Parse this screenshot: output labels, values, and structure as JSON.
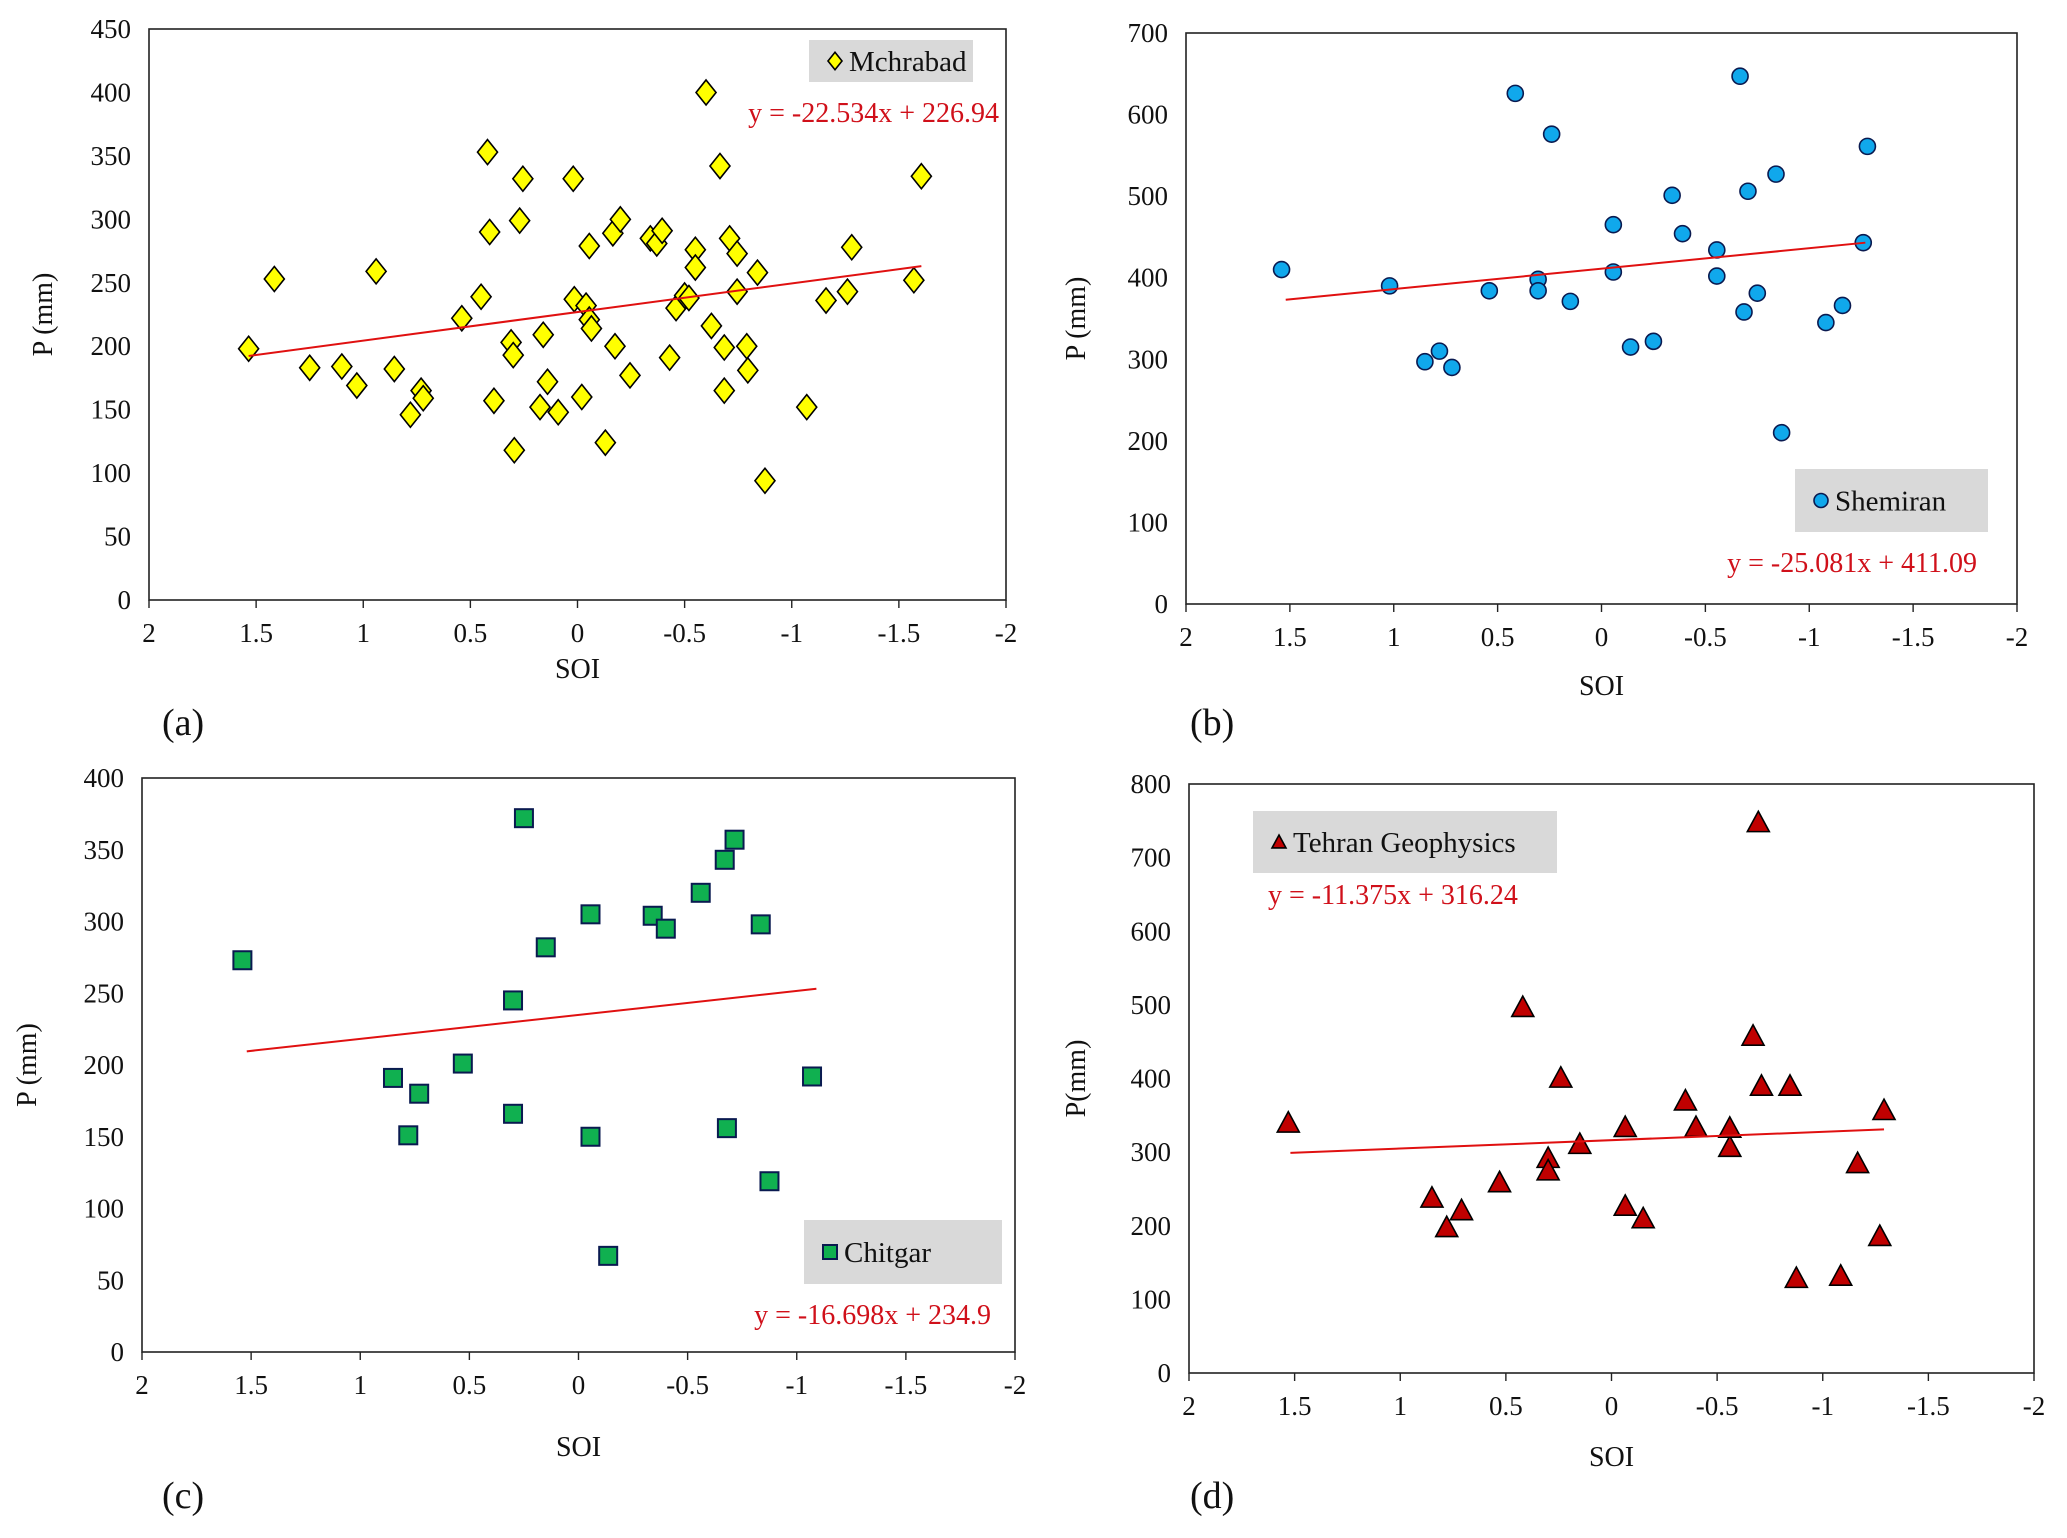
{
  "chart_data": [
    {
      "type": "scatter",
      "panel_label": "(a)",
      "legend": "Mchrabad",
      "legend_position": "top-right",
      "marker": "diamond",
      "marker_color": "#ffff00",
      "equation": "y = -22.534x + 226.94",
      "trend": {
        "slope": -22.534,
        "intercept": 226.94,
        "x_from": 1.535,
        "x_to": -1.605
      },
      "xlabel": "SOI",
      "ylabel": "P (mm)",
      "xlim": [
        2,
        -2
      ],
      "ylim": [
        0,
        450
      ],
      "xticks": [
        {
          "v": 2,
          "label": "2"
        },
        {
          "v": 1.5,
          "label": "1.5"
        },
        {
          "v": 1,
          "label": "1"
        },
        {
          "v": 0.5,
          "label": "0.5"
        },
        {
          "v": 0,
          "label": "0"
        },
        {
          "v": -0.5,
          "label": "-0.5"
        },
        {
          "v": -1,
          "label": "-1"
        },
        {
          "v": -1.5,
          "label": "-1.5"
        },
        {
          "v": -2,
          "label": "-2"
        }
      ],
      "yticks": [
        {
          "v": 0,
          "label": "0"
        },
        {
          "v": 50,
          "label": "50"
        },
        {
          "v": 100,
          "label": "100"
        },
        {
          "v": 150,
          "label": "150"
        },
        {
          "v": 200,
          "label": "200"
        },
        {
          "v": 250,
          "label": "250"
        },
        {
          "v": 300,
          "label": "300"
        },
        {
          "v": 350,
          "label": "350"
        },
        {
          "v": 400,
          "label": "400"
        },
        {
          "v": 450,
          "label": "450"
        }
      ],
      "points": [
        [
          1.535,
          198
        ],
        [
          1.415,
          253
        ],
        [
          1.25,
          183
        ],
        [
          1.1,
          184
        ],
        [
          1.03,
          169
        ],
        [
          0.94,
          259
        ],
        [
          0.855,
          182
        ],
        [
          0.78,
          146
        ],
        [
          0.73,
          165
        ],
        [
          0.72,
          159
        ],
        [
          0.54,
          222
        ],
        [
          0.45,
          239
        ],
        [
          0.42,
          353
        ],
        [
          0.41,
          290
        ],
        [
          0.39,
          157
        ],
        [
          0.31,
          203
        ],
        [
          0.3,
          193
        ],
        [
          0.295,
          118
        ],
        [
          0.27,
          299
        ],
        [
          0.255,
          332
        ],
        [
          0.16,
          209
        ],
        [
          0.14,
          172
        ],
        [
          0.175,
          152
        ],
        [
          0.09,
          148
        ],
        [
          0.02,
          332
        ],
        [
          0.015,
          237
        ],
        [
          -0.02,
          160
        ],
        [
          -0.04,
          232
        ],
        [
          -0.055,
          279
        ],
        [
          -0.055,
          221
        ],
        [
          -0.065,
          214
        ],
        [
          -0.13,
          124
        ],
        [
          -0.165,
          289
        ],
        [
          -0.175,
          200
        ],
        [
          -0.2,
          300
        ],
        [
          -0.245,
          177
        ],
        [
          -0.34,
          285
        ],
        [
          -0.37,
          281
        ],
        [
          -0.395,
          291
        ],
        [
          -0.43,
          191
        ],
        [
          -0.46,
          230
        ],
        [
          -0.5,
          240
        ],
        [
          -0.52,
          238
        ],
        [
          -0.55,
          276
        ],
        [
          -0.55,
          262
        ],
        [
          -0.6,
          400
        ],
        [
          -0.625,
          216
        ],
        [
          -0.665,
          342
        ],
        [
          -0.685,
          199
        ],
        [
          -0.685,
          165
        ],
        [
          -0.71,
          285
        ],
        [
          -0.745,
          273
        ],
        [
          -0.745,
          243
        ],
        [
          -0.79,
          200
        ],
        [
          -0.795,
          181
        ],
        [
          -0.84,
          258
        ],
        [
          -0.875,
          94
        ],
        [
          -1.07,
          152
        ],
        [
          -1.16,
          236
        ],
        [
          -1.26,
          243
        ],
        [
          -1.28,
          278
        ],
        [
          -1.57,
          252
        ],
        [
          -1.605,
          334
        ]
      ]
    },
    {
      "type": "scatter",
      "panel_label": "(b)",
      "legend": "Shemiran",
      "legend_position": "bottom-right",
      "marker": "circle",
      "marker_color": "#10a8ec",
      "equation": "y = -25.081x + 411.09",
      "trend": {
        "slope": -25.081,
        "intercept": 411.09,
        "x_from": 1.52,
        "x_to": -1.27
      },
      "xlabel": "SOI",
      "ylabel": "P (mm)",
      "xlim": [
        2,
        -2
      ],
      "ylim": [
        0,
        700
      ],
      "xticks": [
        {
          "v": 2,
          "label": "2"
        },
        {
          "v": 1.5,
          "label": "1.5"
        },
        {
          "v": 1,
          "label": "1"
        },
        {
          "v": 0.5,
          "label": "0.5"
        },
        {
          "v": 0,
          "label": "0"
        },
        {
          "v": -0.5,
          "label": "-0.5"
        },
        {
          "v": -1,
          "label": "-1"
        },
        {
          "v": -1.5,
          "label": "-1.5"
        },
        {
          "v": -2,
          "label": "-2"
        }
      ],
      "yticks": [
        {
          "v": 0,
          "label": "0"
        },
        {
          "v": 100,
          "label": "100"
        },
        {
          "v": 200,
          "label": "200"
        },
        {
          "v": 300,
          "label": "300"
        },
        {
          "v": 400,
          "label": "400"
        },
        {
          "v": 500,
          "label": "500"
        },
        {
          "v": 600,
          "label": "600"
        },
        {
          "v": 700,
          "label": "700"
        }
      ],
      "points": [
        [
          1.54,
          410
        ],
        [
          1.02,
          390
        ],
        [
          0.85,
          297
        ],
        [
          0.78,
          310
        ],
        [
          0.72,
          290
        ],
        [
          0.54,
          384
        ],
        [
          0.415,
          626
        ],
        [
          0.305,
          398
        ],
        [
          0.305,
          384
        ],
        [
          0.24,
          576
        ],
        [
          0.15,
          371
        ],
        [
          -0.057,
          465
        ],
        [
          -0.057,
          407
        ],
        [
          -0.14,
          315
        ],
        [
          -0.25,
          322
        ],
        [
          -0.34,
          501
        ],
        [
          -0.39,
          454
        ],
        [
          -0.555,
          434
        ],
        [
          -0.555,
          402
        ],
        [
          -0.667,
          647
        ],
        [
          -0.686,
          358
        ],
        [
          -0.705,
          506
        ],
        [
          -0.75,
          381
        ],
        [
          -0.84,
          527
        ],
        [
          -0.867,
          210
        ],
        [
          -1.08,
          345
        ],
        [
          -1.16,
          366
        ],
        [
          -1.26,
          443
        ],
        [
          -1.28,
          561
        ]
      ]
    },
    {
      "type": "scatter",
      "panel_label": "(c)",
      "legend": "Chitgar",
      "legend_position": "bottom-right",
      "marker": "square",
      "marker_color": "#10b050",
      "equation": "y = -16.698x + 234.9",
      "trend": {
        "slope": -16.698,
        "intercept": 234.9,
        "x_from": 1.52,
        "x_to": -1.09
      },
      "xlabel": "SOI",
      "ylabel": "P (mm)",
      "xlim": [
        2,
        -2
      ],
      "ylim": [
        0,
        400
      ],
      "xticks": [
        {
          "v": 2,
          "label": "2"
        },
        {
          "v": 1.5,
          "label": "1.5"
        },
        {
          "v": 1,
          "label": "1"
        },
        {
          "v": 0.5,
          "label": "0.5"
        },
        {
          "v": 0,
          "label": "0"
        },
        {
          "v": -0.5,
          "label": "-0.5"
        },
        {
          "v": -1,
          "label": "-1"
        },
        {
          "v": -1.5,
          "label": "-1.5"
        },
        {
          "v": -2,
          "label": "-2"
        }
      ],
      "yticks": [
        {
          "v": 0,
          "label": "0"
        },
        {
          "v": 50,
          "label": "50"
        },
        {
          "v": 100,
          "label": "100"
        },
        {
          "v": 150,
          "label": "150"
        },
        {
          "v": 200,
          "label": "200"
        },
        {
          "v": 250,
          "label": "250"
        },
        {
          "v": 300,
          "label": "300"
        },
        {
          "v": 350,
          "label": "350"
        },
        {
          "v": 400,
          "label": "400"
        }
      ],
      "points": [
        [
          1.54,
          273
        ],
        [
          0.85,
          191
        ],
        [
          0.78,
          151
        ],
        [
          0.73,
          180
        ],
        [
          0.53,
          201
        ],
        [
          0.3,
          166
        ],
        [
          0.3,
          245
        ],
        [
          0.25,
          372
        ],
        [
          0.15,
          282
        ],
        [
          -0.055,
          305
        ],
        [
          -0.055,
          150
        ],
        [
          -0.136,
          67
        ],
        [
          -0.34,
          304
        ],
        [
          -0.4,
          295
        ],
        [
          -0.56,
          320
        ],
        [
          -0.67,
          343
        ],
        [
          -0.68,
          156
        ],
        [
          -0.715,
          357
        ],
        [
          -0.835,
          298
        ],
        [
          -0.875,
          119
        ],
        [
          -1.07,
          192
        ]
      ]
    },
    {
      "type": "scatter",
      "panel_label": "(d)",
      "legend": "Tehran Geophysics",
      "legend_position": "top-left",
      "marker": "triangle",
      "marker_color": "#c00000",
      "equation": "y = -11.375x + 316.24",
      "trend": {
        "slope": -11.375,
        "intercept": 316.24,
        "x_from": 1.52,
        "x_to": -1.29
      },
      "xlabel": "SOI",
      "ylabel": "P(mm)",
      "xlim": [
        2,
        -2
      ],
      "ylim": [
        0,
        800
      ],
      "xticks": [
        {
          "v": 2,
          "label": "2"
        },
        {
          "v": 1.5,
          "label": "1.5"
        },
        {
          "v": 1,
          "label": "1"
        },
        {
          "v": 0.5,
          "label": "0.5"
        },
        {
          "v": 0,
          "label": "0"
        },
        {
          "v": -0.5,
          "label": "-0.5"
        },
        {
          "v": -1,
          "label": "-1"
        },
        {
          "v": -1.5,
          "label": "-1.5"
        },
        {
          "v": -2,
          "label": "-2"
        }
      ],
      "yticks": [
        {
          "v": 0,
          "label": "0"
        },
        {
          "v": 100,
          "label": "100"
        },
        {
          "v": 200,
          "label": "200"
        },
        {
          "v": 300,
          "label": "300"
        },
        {
          "v": 400,
          "label": "400"
        },
        {
          "v": 500,
          "label": "500"
        },
        {
          "v": 600,
          "label": "600"
        },
        {
          "v": 700,
          "label": "700"
        },
        {
          "v": 800,
          "label": "800"
        }
      ],
      "points": [
        [
          1.53,
          340
        ],
        [
          0.85,
          238
        ],
        [
          0.78,
          198
        ],
        [
          0.71,
          221
        ],
        [
          0.53,
          259
        ],
        [
          0.42,
          497
        ],
        [
          0.3,
          292
        ],
        [
          0.3,
          275
        ],
        [
          0.24,
          401
        ],
        [
          0.15,
          311
        ],
        [
          -0.065,
          334
        ],
        [
          -0.065,
          227
        ],
        [
          -0.15,
          210
        ],
        [
          -0.35,
          370
        ],
        [
          -0.4,
          334
        ],
        [
          -0.56,
          333
        ],
        [
          -0.56,
          307
        ],
        [
          -0.67,
          458
        ],
        [
          -0.695,
          748
        ],
        [
          -0.71,
          390
        ],
        [
          -0.845,
          390
        ],
        [
          -0.875,
          129
        ],
        [
          -1.085,
          132
        ],
        [
          -1.165,
          285
        ],
        [
          -1.27,
          186
        ],
        [
          -1.29,
          357
        ]
      ]
    }
  ]
}
